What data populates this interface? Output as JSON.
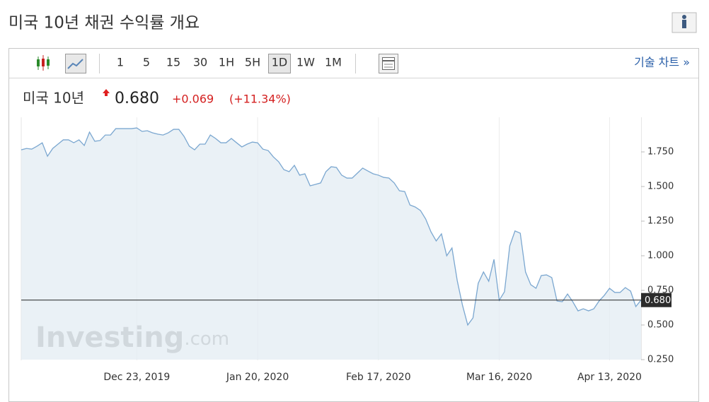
{
  "header": {
    "title": "미국 10년 채권 수익률 개요"
  },
  "toolbar": {
    "intervals": [
      "1",
      "5",
      "15",
      "30",
      "1H",
      "5H",
      "1D",
      "1W",
      "1M"
    ],
    "selected": 6,
    "link": "기술 차트 »"
  },
  "quote": {
    "name": "미국 10년",
    "price": "0.680",
    "change": "+0.069",
    "change_percent": "(+11.34%)"
  },
  "watermark": {
    "brand": "Investing",
    "suffix": ".com"
  },
  "chart_data": {
    "type": "area",
    "color": "#7ba7d0",
    "fill": "#e3ecf3",
    "values": [
      1.765,
      1.775,
      1.77,
      1.791,
      1.816,
      1.719,
      1.775,
      1.806,
      1.837,
      1.837,
      1.816,
      1.837,
      1.796,
      1.893,
      1.827,
      1.832,
      1.872,
      1.872,
      1.918,
      1.918,
      1.918,
      1.918,
      1.923,
      1.898,
      1.903,
      1.888,
      1.878,
      1.872,
      1.888,
      1.913,
      1.913,
      1.862,
      1.791,
      1.765,
      1.806,
      1.806,
      1.872,
      1.847,
      1.816,
      1.816,
      1.847,
      1.816,
      1.786,
      1.806,
      1.821,
      1.816,
      1.77,
      1.76,
      1.714,
      1.679,
      1.622,
      1.607,
      1.653,
      1.582,
      1.592,
      1.505,
      1.515,
      1.526,
      1.607,
      1.643,
      1.638,
      1.582,
      1.561,
      1.561,
      1.597,
      1.633,
      1.612,
      1.592,
      1.582,
      1.566,
      1.561,
      1.526,
      1.469,
      1.464,
      1.367,
      1.352,
      1.327,
      1.265,
      1.173,
      1.107,
      1.158,
      1.0,
      1.056,
      0.821,
      0.643,
      0.5,
      0.551,
      0.801,
      0.883,
      0.816,
      0.974,
      0.679,
      0.74,
      1.071,
      1.179,
      1.163,
      0.883,
      0.791,
      0.765,
      0.857,
      0.862,
      0.842,
      0.673,
      0.668,
      0.724,
      0.668,
      0.602,
      0.617,
      0.602,
      0.617,
      0.673,
      0.714,
      0.765,
      0.735,
      0.735,
      0.77,
      0.745,
      0.633,
      0.68
    ],
    "categories": [
      null,
      null,
      null,
      null,
      null,
      null,
      null,
      null,
      null,
      null,
      null,
      null,
      null,
      null,
      null,
      null,
      null,
      null,
      null,
      null,
      null,
      null,
      "Dec 23, 2019",
      null,
      null,
      null,
      null,
      null,
      null,
      null,
      null,
      null,
      null,
      null,
      null,
      null,
      null,
      null,
      null,
      null,
      null,
      null,
      null,
      null,
      null,
      "Jan 20, 2020",
      null,
      null,
      null,
      null,
      null,
      null,
      null,
      null,
      null,
      null,
      null,
      null,
      null,
      null,
      null,
      null,
      null,
      null,
      null,
      null,
      null,
      null,
      "Feb 17, 2020",
      null,
      null,
      null,
      null,
      null,
      null,
      null,
      null,
      null,
      null,
      null,
      null,
      null,
      null,
      null,
      null,
      null,
      null,
      null,
      null,
      null,
      null,
      "Mar 16, 2020",
      null,
      null,
      null,
      null,
      null,
      null,
      null,
      null,
      null,
      null,
      null,
      null,
      null,
      null,
      null,
      null,
      null,
      null,
      null,
      null,
      "Apr 13, 2020",
      null,
      null,
      null,
      null,
      null,
      null
    ],
    "ylim": [
      0.25,
      2.0
    ],
    "yticks": [
      {
        "value": 0.25,
        "label": "0.250"
      },
      {
        "value": 0.5,
        "label": "0.500"
      },
      {
        "value": 0.75,
        "label": "0.750"
      },
      {
        "value": 1.0,
        "label": "1.000"
      },
      {
        "value": 1.25,
        "label": "1.250"
      },
      {
        "value": 1.5,
        "label": "1.500"
      },
      {
        "value": 1.75,
        "label": "1.750"
      }
    ],
    "xgrid": true,
    "current_line": true
  }
}
